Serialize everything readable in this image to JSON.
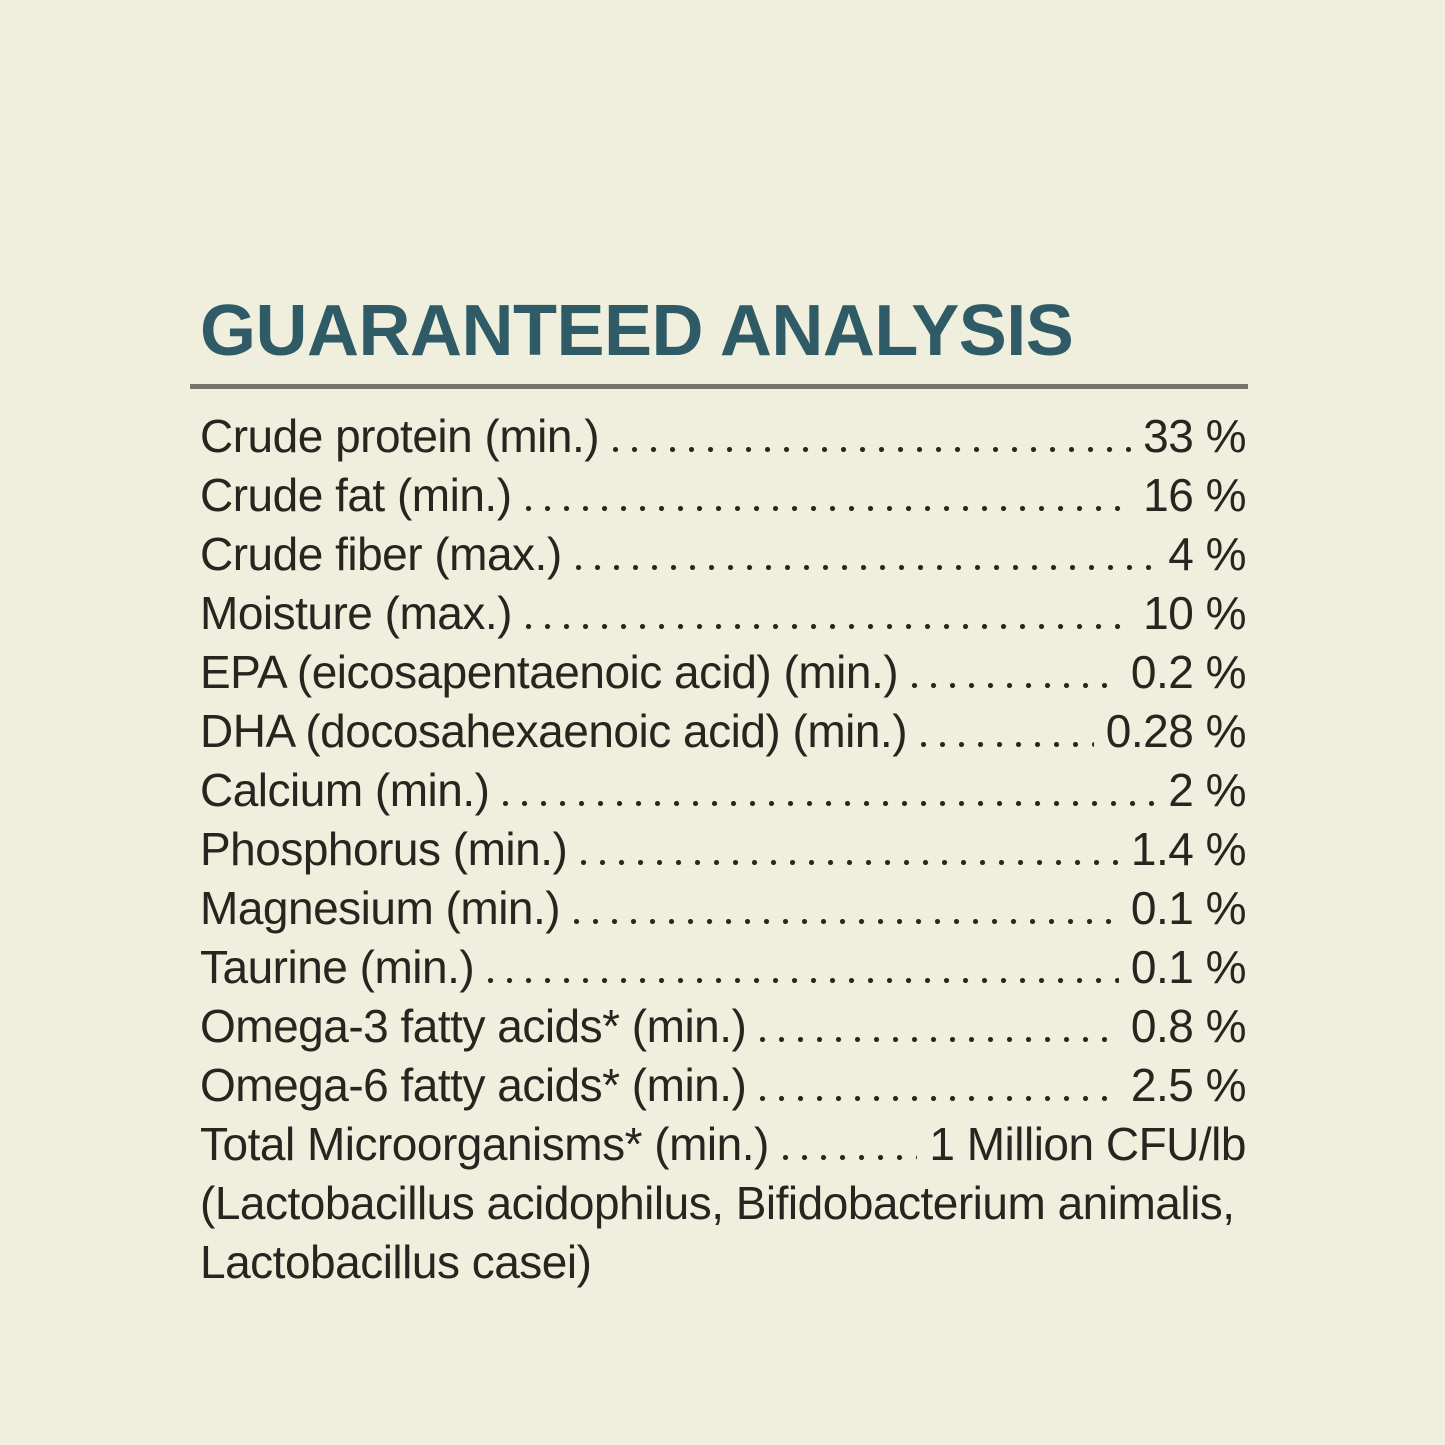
{
  "theme": {
    "background": "#f0eedd",
    "title_color": "#2e5b66",
    "divider_color": "#75756b",
    "text_color": "#26251f"
  },
  "label": {
    "title": "GUARANTEED ANALYSIS",
    "rows": [
      {
        "label": "Crude protein (min.)",
        "value": "33 %"
      },
      {
        "label": "Crude fat (min.)",
        "value": "16 %"
      },
      {
        "label": "Crude fiber (max.)",
        "value": "4 %"
      },
      {
        "label": "Moisture (max.)",
        "value": "10 %"
      },
      {
        "label": "EPA (eicosapentaenoic acid) (min.)",
        "value": "0.2 %"
      },
      {
        "label": "DHA (docosahexaenoic acid) (min.)",
        "value": "0.28 %"
      },
      {
        "label": "Calcium (min.)",
        "value": "2 %"
      },
      {
        "label": "Phosphorus (min.)",
        "value": "1.4 %"
      },
      {
        "label": "Magnesium (min.)",
        "value": "0.1 %"
      },
      {
        "label": "Taurine (min.)",
        "value": "0.1 %"
      },
      {
        "label": "Omega-3 fatty acids* (min.)",
        "value": "0.8 %"
      },
      {
        "label": "Omega-6 fatty acids* (min.)",
        "value": "2.5 %"
      },
      {
        "label": "Total Microorganisms* (min.)",
        "value": "1 Million CFU/lb"
      }
    ],
    "footnote_lines": [
      "(Lactobacillus acidophilus, Bifidobacterium animalis,",
      "Lactobacillus casei)"
    ]
  }
}
